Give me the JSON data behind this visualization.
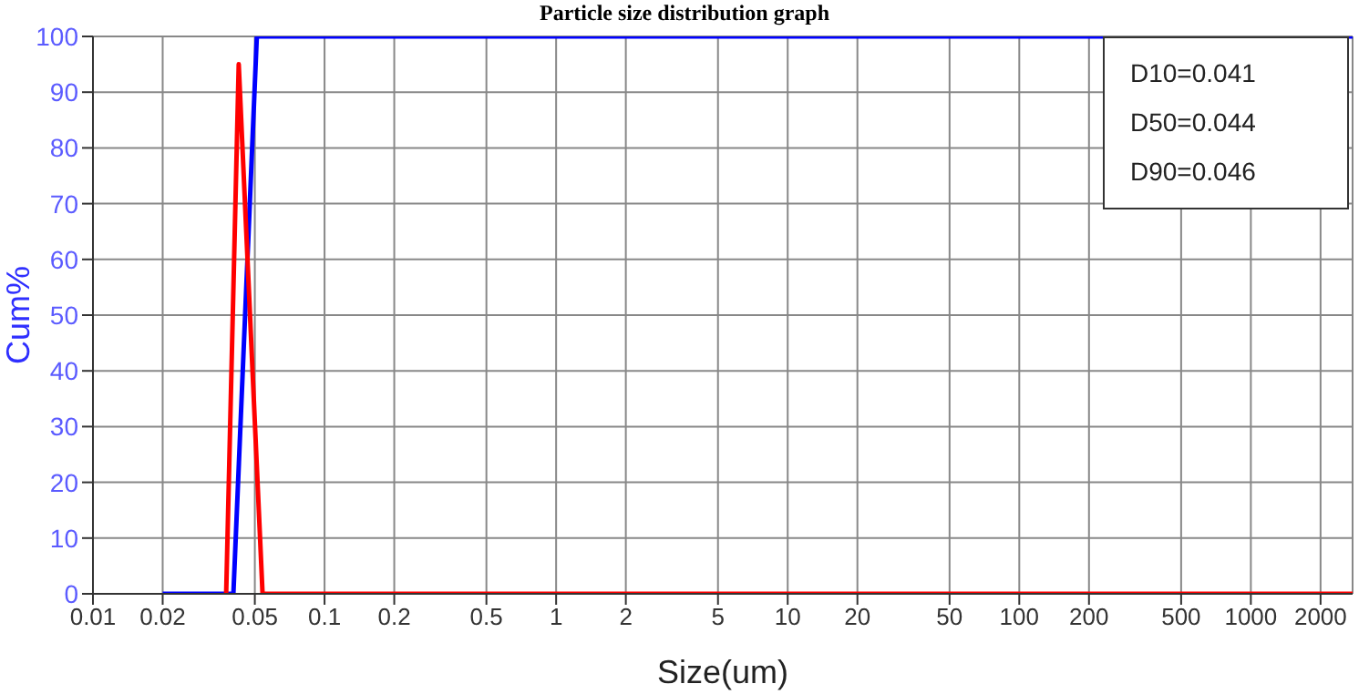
{
  "chart_data": {
    "type": "line",
    "title": "Particle size distribution graph",
    "xlabel": "Size(um)",
    "ylabel": "Cum%",
    "log": "x",
    "grid": true,
    "marker": "none",
    "line_style": "solid",
    "xlim": [
      0.01,
      2750
    ],
    "xticks": [
      0.01,
      0.02,
      0.05,
      0.1,
      0.2,
      0.5,
      1,
      2,
      5,
      10,
      20,
      50,
      100,
      200,
      500,
      1000,
      2000
    ],
    "ylim": [
      0,
      100
    ],
    "yticks": [
      0,
      10,
      20,
      30,
      40,
      50,
      60,
      70,
      80,
      90,
      100
    ],
    "series": [
      {
        "color": "#0000ff",
        "x": [
          0.02,
          0.0404,
          0.051,
          2750
        ],
        "values": [
          0,
          0,
          100,
          100
        ]
      },
      {
        "color": "#ff0000",
        "x": [
          0.0376,
          0.0426,
          0.054,
          2750
        ],
        "values": [
          0,
          95,
          0,
          0
        ]
      }
    ],
    "annotations": [
      "D10=0.041",
      "D50=0.044",
      "D90=0.046"
    ]
  }
}
